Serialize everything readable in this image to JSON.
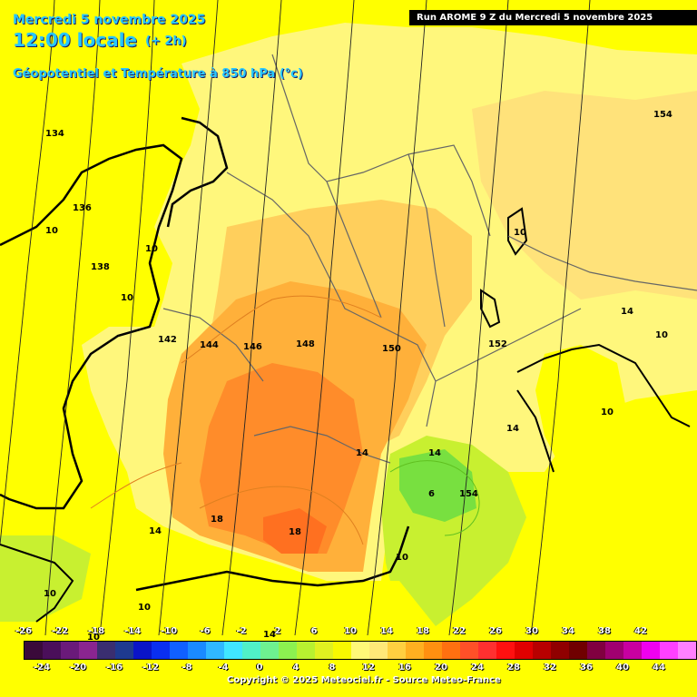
{
  "header": {
    "date": "Mercredi 5 novembre 2025",
    "time": "12:00 locale",
    "offset": "(+ 2h)",
    "parameter": "Géopotentiel et Température à 850 hPa (°c)",
    "run": "Run AROME 9 Z du Mercredi 5 novembre 2025"
  },
  "geopotential_labels": [
    "134",
    "136",
    "138",
    "142",
    "144",
    "146",
    "148",
    "150",
    "152",
    "154",
    "154"
  ],
  "temperature_labels": [
    "10",
    "10",
    "10",
    "10",
    "10",
    "10",
    "14",
    "14",
    "14",
    "14",
    "14",
    "14",
    "6",
    "18",
    "18",
    "10",
    "10",
    "10",
    "10"
  ],
  "legend": {
    "top_ticks": [
      "-26",
      "-22",
      "-18",
      "-14",
      "-10",
      "-6",
      "-2",
      "2",
      "6",
      "10",
      "14",
      "18",
      "22",
      "26",
      "30",
      "34",
      "38",
      "42"
    ],
    "bottom_ticks": [
      "-24",
      "-20",
      "-16",
      "-12",
      "-8",
      "-4",
      "0",
      "4",
      "8",
      "12",
      "16",
      "20",
      "24",
      "28",
      "32",
      "36",
      "40",
      "44"
    ],
    "colors": [
      "#3a0a3a",
      "#4a0f5a",
      "#6a1a7a",
      "#8a2590",
      "#3a2e70",
      "#1e3a90",
      "#0a14c8",
      "#0a2ff0",
      "#1060ff",
      "#1a8aff",
      "#30b8ff",
      "#40e6ff",
      "#50f0c8",
      "#6ef090",
      "#8cf050",
      "#b8f030",
      "#e0f020",
      "#f8f800",
      "#fff878",
      "#ffe878",
      "#ffd040",
      "#ffb020",
      "#ff9010",
      "#ff7010",
      "#ff5028",
      "#ff3030",
      "#ff1010",
      "#e00000",
      "#b80000",
      "#900000",
      "#700000",
      "#800040",
      "#a00070",
      "#c800a0",
      "#f000f0",
      "#ff40ff",
      "#ff80ff"
    ]
  },
  "copyright": "Copyright © 2025 Meteociel.fr - Source Meteo-France",
  "colors": {
    "sea": "#ffff00",
    "land_light": "#fff77c",
    "land_mid": "#ffe27a",
    "warm": "#ffb84a",
    "hot": "#ff8c2a",
    "cool": "#c8f030",
    "cold": "#78e040",
    "title": "#27c6ff"
  }
}
